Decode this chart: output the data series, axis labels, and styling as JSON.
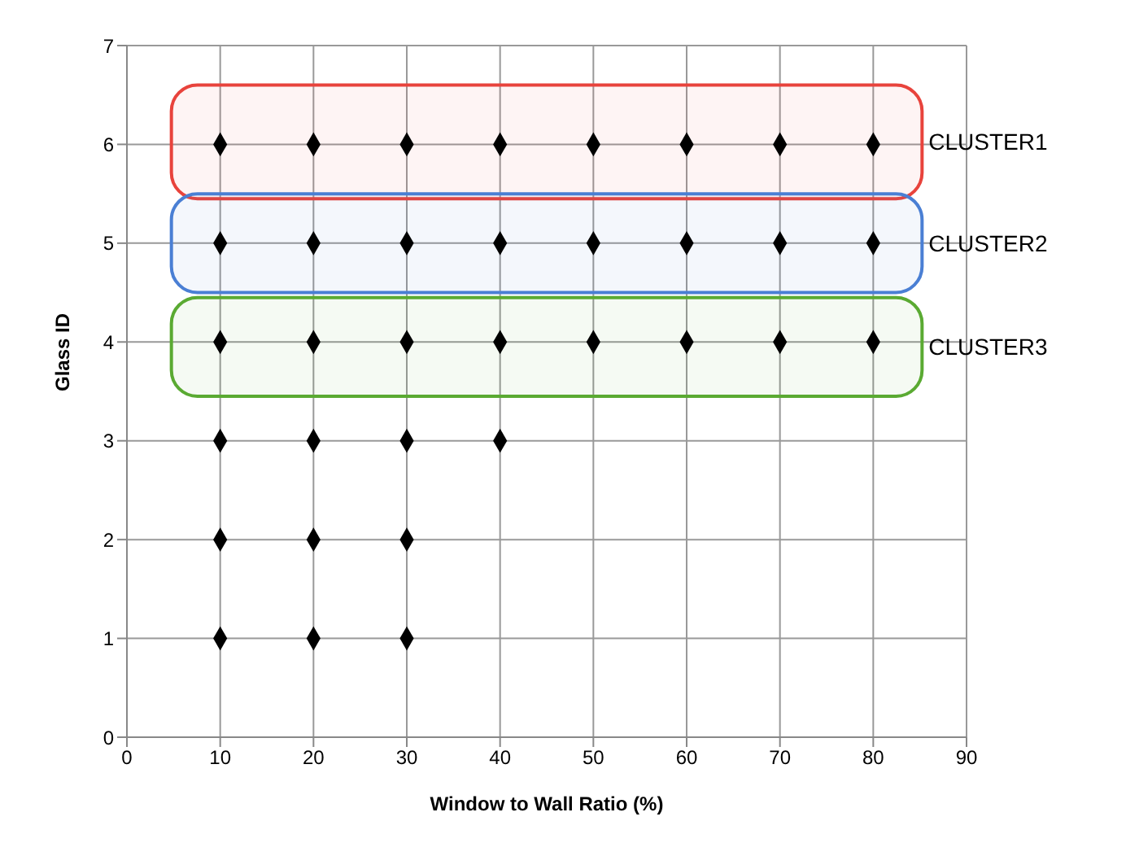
{
  "chart_data": {
    "type": "scatter",
    "xlabel": "Window to Wall Ratio (%)",
    "ylabel": "Glass ID",
    "x": [
      10,
      20,
      30,
      40,
      50,
      60,
      70,
      80,
      10,
      20,
      30,
      40,
      50,
      60,
      70,
      80,
      10,
      20,
      30,
      40,
      50,
      60,
      70,
      80,
      10,
      20,
      30,
      40,
      10,
      20,
      30,
      10,
      20,
      30
    ],
    "series": [
      {
        "color": "#000000",
        "values": [
          6,
          6,
          6,
          6,
          6,
          6,
          6,
          6,
          5,
          5,
          5,
          5,
          5,
          5,
          5,
          5,
          4,
          4,
          4,
          4,
          4,
          4,
          4,
          4,
          3,
          3,
          3,
          3,
          2,
          2,
          2,
          1,
          1,
          1
        ]
      }
    ],
    "xlim": [
      0,
      90
    ],
    "xticks": [
      0,
      10,
      20,
      30,
      40,
      50,
      60,
      70,
      80,
      90
    ],
    "ylim": [
      0,
      7
    ],
    "yticks": [
      0,
      1,
      2,
      3,
      4,
      5,
      6,
      7
    ],
    "grid": true,
    "marker": "diamond",
    "legend": false,
    "bands": [
      {
        "axis": "y",
        "from": 5.45,
        "to": 6.6,
        "label": "CLUSTER1",
        "color": "#e8433c"
      },
      {
        "axis": "y",
        "from": 4.5,
        "to": 5.5,
        "label": "CLUSTER2",
        "color": "#4a7fd4"
      },
      {
        "axis": "y",
        "from": 3.45,
        "to": 4.45,
        "label": "CLUSTER3",
        "color": "#5aaa32"
      }
    ]
  }
}
